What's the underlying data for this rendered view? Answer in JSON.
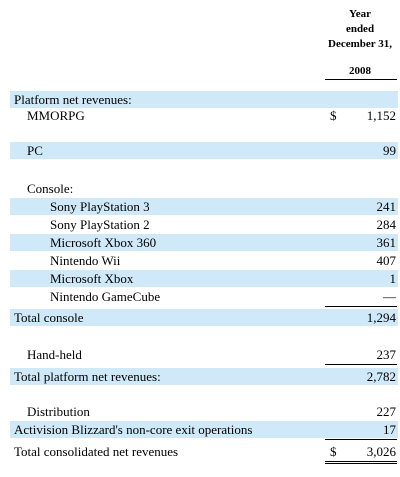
{
  "header": {
    "line1": "Year",
    "line2": "ended",
    "line3": "December 31,",
    "year": "2008"
  },
  "section_platform": "Platform net revenues:",
  "mmorpg": {
    "label": "MMORPG",
    "dollar": "$",
    "value": "1,152"
  },
  "pc": {
    "label": "PC",
    "value": "99"
  },
  "section_console": "Console:",
  "console_items": [
    {
      "label": "Sony PlayStation 3",
      "value": "241"
    },
    {
      "label": "Sony PlayStation 2",
      "value": "284"
    },
    {
      "label": "Microsoft Xbox 360",
      "value": "361"
    },
    {
      "label": "Nintendo Wii",
      "value": "407"
    },
    {
      "label": "Microsoft Xbox",
      "value": "1"
    },
    {
      "label": "Nintendo GameCube",
      "value": "—"
    }
  ],
  "total_console": {
    "label": "Total console",
    "value": "1,294"
  },
  "handheld": {
    "label": "Hand-held",
    "value": "237"
  },
  "total_platform": {
    "label": "Total platform net revenues:",
    "value": "2,782"
  },
  "distribution": {
    "label": "Distribution",
    "value": "227"
  },
  "noncore": {
    "label": "Activision Blizzard's non-core exit operations",
    "value": "17"
  },
  "total_consolidated": {
    "label": "Total consolidated net revenues",
    "dollar": "$",
    "value": "3,026"
  },
  "colors": {
    "band": "#cfe9f8"
  }
}
